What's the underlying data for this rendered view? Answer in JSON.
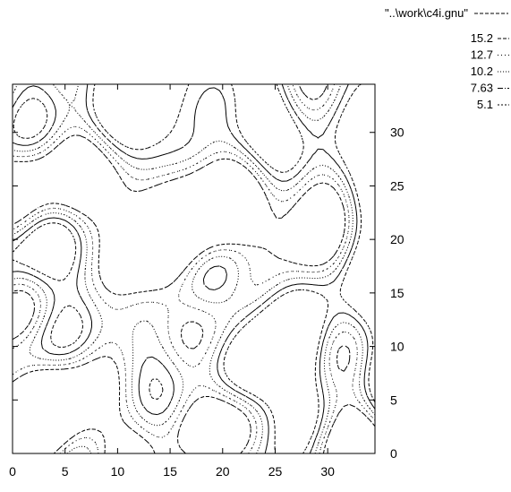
{
  "chart_data": {
    "type": "contour",
    "title": "",
    "xlabel": "",
    "ylabel": "",
    "xlim": [
      0,
      34.5
    ],
    "ylim": [
      0,
      34.5
    ],
    "xticks": [
      "0",
      "5",
      "10",
      "15",
      "20",
      "25",
      "30"
    ],
    "yticks": [
      "0",
      "5",
      "10",
      "15",
      "20",
      "25",
      "30"
    ],
    "y_axis_side": "right",
    "grid": false,
    "legend": {
      "placement": "top-right",
      "title": "\"..\\work\\c4i.gnu\"",
      "levels": [
        "15.2",
        "12.7",
        "10.2",
        "7.63",
        "5.1"
      ],
      "level_dashes": [
        "4 2",
        "1 3",
        "1 2",
        "6 2 1 2",
        "2 2"
      ]
    },
    "series": [
      {
        "name": "15.2"
      },
      {
        "name": "12.7"
      },
      {
        "name": "10.2"
      },
      {
        "name": "7.63"
      },
      {
        "name": "5.1"
      }
    ]
  }
}
